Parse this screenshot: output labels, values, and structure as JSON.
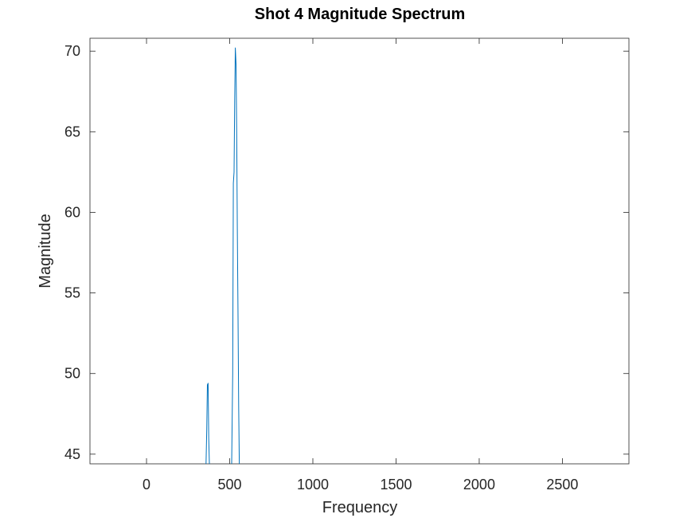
{
  "chart_data": {
    "type": "line",
    "title": "Shot 4 Magnitude Spectrum",
    "xlabel": "Frequency",
    "ylabel": "Magnitude",
    "xlim": [
      -340,
      2900
    ],
    "ylim": [
      44.4,
      70.8
    ],
    "xticks": [
      0,
      500,
      1000,
      1500,
      2000,
      2500
    ],
    "yticks": [
      45,
      50,
      55,
      60,
      65,
      70
    ],
    "grid": false,
    "line_color": "#0072bd",
    "series": [
      {
        "x": [
          358,
          362,
          366,
          370,
          374,
          378
        ],
        "y": [
          44.4,
          46.5,
          49.3,
          49.4,
          46.0,
          44.4
        ]
      },
      {
        "x": [
          512,
          518,
          522,
          526,
          530,
          534,
          538,
          542,
          546,
          550,
          554,
          558
        ],
        "y": [
          44.4,
          50.0,
          61.8,
          62.5,
          67.0,
          70.2,
          69.2,
          65.0,
          59.0,
          53.5,
          48.0,
          44.4
        ]
      }
    ]
  }
}
